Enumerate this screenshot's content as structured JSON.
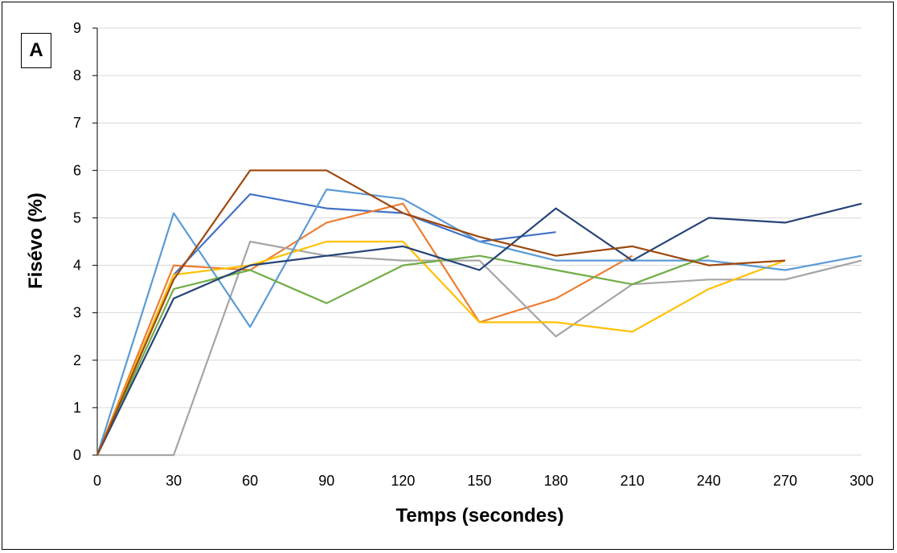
{
  "panel_label": "A",
  "chart_data": {
    "type": "line",
    "title": "",
    "xlabel": "Temps (secondes)",
    "ylabel": "Fisévo (%)",
    "x_ticks": [
      0,
      30,
      60,
      90,
      120,
      150,
      180,
      210,
      240,
      270,
      300
    ],
    "y_ticks": [
      0,
      1,
      2,
      3,
      4,
      5,
      6,
      7,
      8,
      9
    ],
    "xlim": [
      0,
      300
    ],
    "ylim": [
      0,
      9
    ],
    "grid": "horizontal",
    "legend": "none",
    "series": [
      {
        "color": "#4472C4",
        "x": [
          0,
          30,
          60,
          90,
          120,
          150,
          180
        ],
        "values": [
          0,
          3.8,
          5.5,
          5.2,
          5.1,
          4.5,
          4.7
        ]
      },
      {
        "color": "#ED7D31",
        "x": [
          0,
          30,
          60,
          90,
          120,
          150,
          180,
          210
        ],
        "values": [
          0,
          4.0,
          3.9,
          4.9,
          5.3,
          2.8,
          3.3,
          4.2
        ]
      },
      {
        "color": "#A5A5A5",
        "x": [
          0,
          30,
          60,
          90,
          120,
          150,
          180,
          210,
          240,
          270,
          300
        ],
        "values": [
          0,
          0,
          4.5,
          4.2,
          4.1,
          4.1,
          2.5,
          3.6,
          3.7,
          3.7,
          4.1
        ]
      },
      {
        "color": "#FFC000",
        "x": [
          0,
          30,
          60,
          90,
          120,
          150,
          180,
          210,
          240,
          270
        ],
        "values": [
          0,
          3.8,
          4.0,
          4.5,
          4.5,
          2.8,
          2.8,
          2.6,
          3.5,
          4.1
        ]
      },
      {
        "color": "#5B9BD5",
        "x": [
          0,
          30,
          60,
          90,
          120,
          150,
          180,
          210,
          240,
          270,
          300
        ],
        "values": [
          0,
          5.1,
          2.7,
          5.6,
          5.4,
          4.5,
          4.1,
          4.1,
          4.1,
          3.9,
          4.2
        ]
      },
      {
        "color": "#70AD47",
        "x": [
          0,
          30,
          60,
          90,
          120,
          150,
          180,
          210,
          240
        ],
        "values": [
          0,
          3.5,
          3.9,
          3.2,
          4.0,
          4.2,
          3.9,
          3.6,
          4.2
        ]
      },
      {
        "color": "#264478",
        "x": [
          0,
          30,
          60,
          90,
          120,
          150,
          180,
          210,
          240,
          270,
          300
        ],
        "values": [
          0,
          3.3,
          4.0,
          4.2,
          4.4,
          3.9,
          5.2,
          4.1,
          5.0,
          4.9,
          5.3
        ]
      },
      {
        "color": "#9E480E",
        "x": [
          0,
          30,
          60,
          90,
          120,
          150,
          180,
          210,
          240,
          270
        ],
        "values": [
          0,
          3.7,
          6.0,
          6.0,
          5.1,
          4.6,
          4.2,
          4.4,
          4.0,
          4.1
        ]
      }
    ]
  }
}
